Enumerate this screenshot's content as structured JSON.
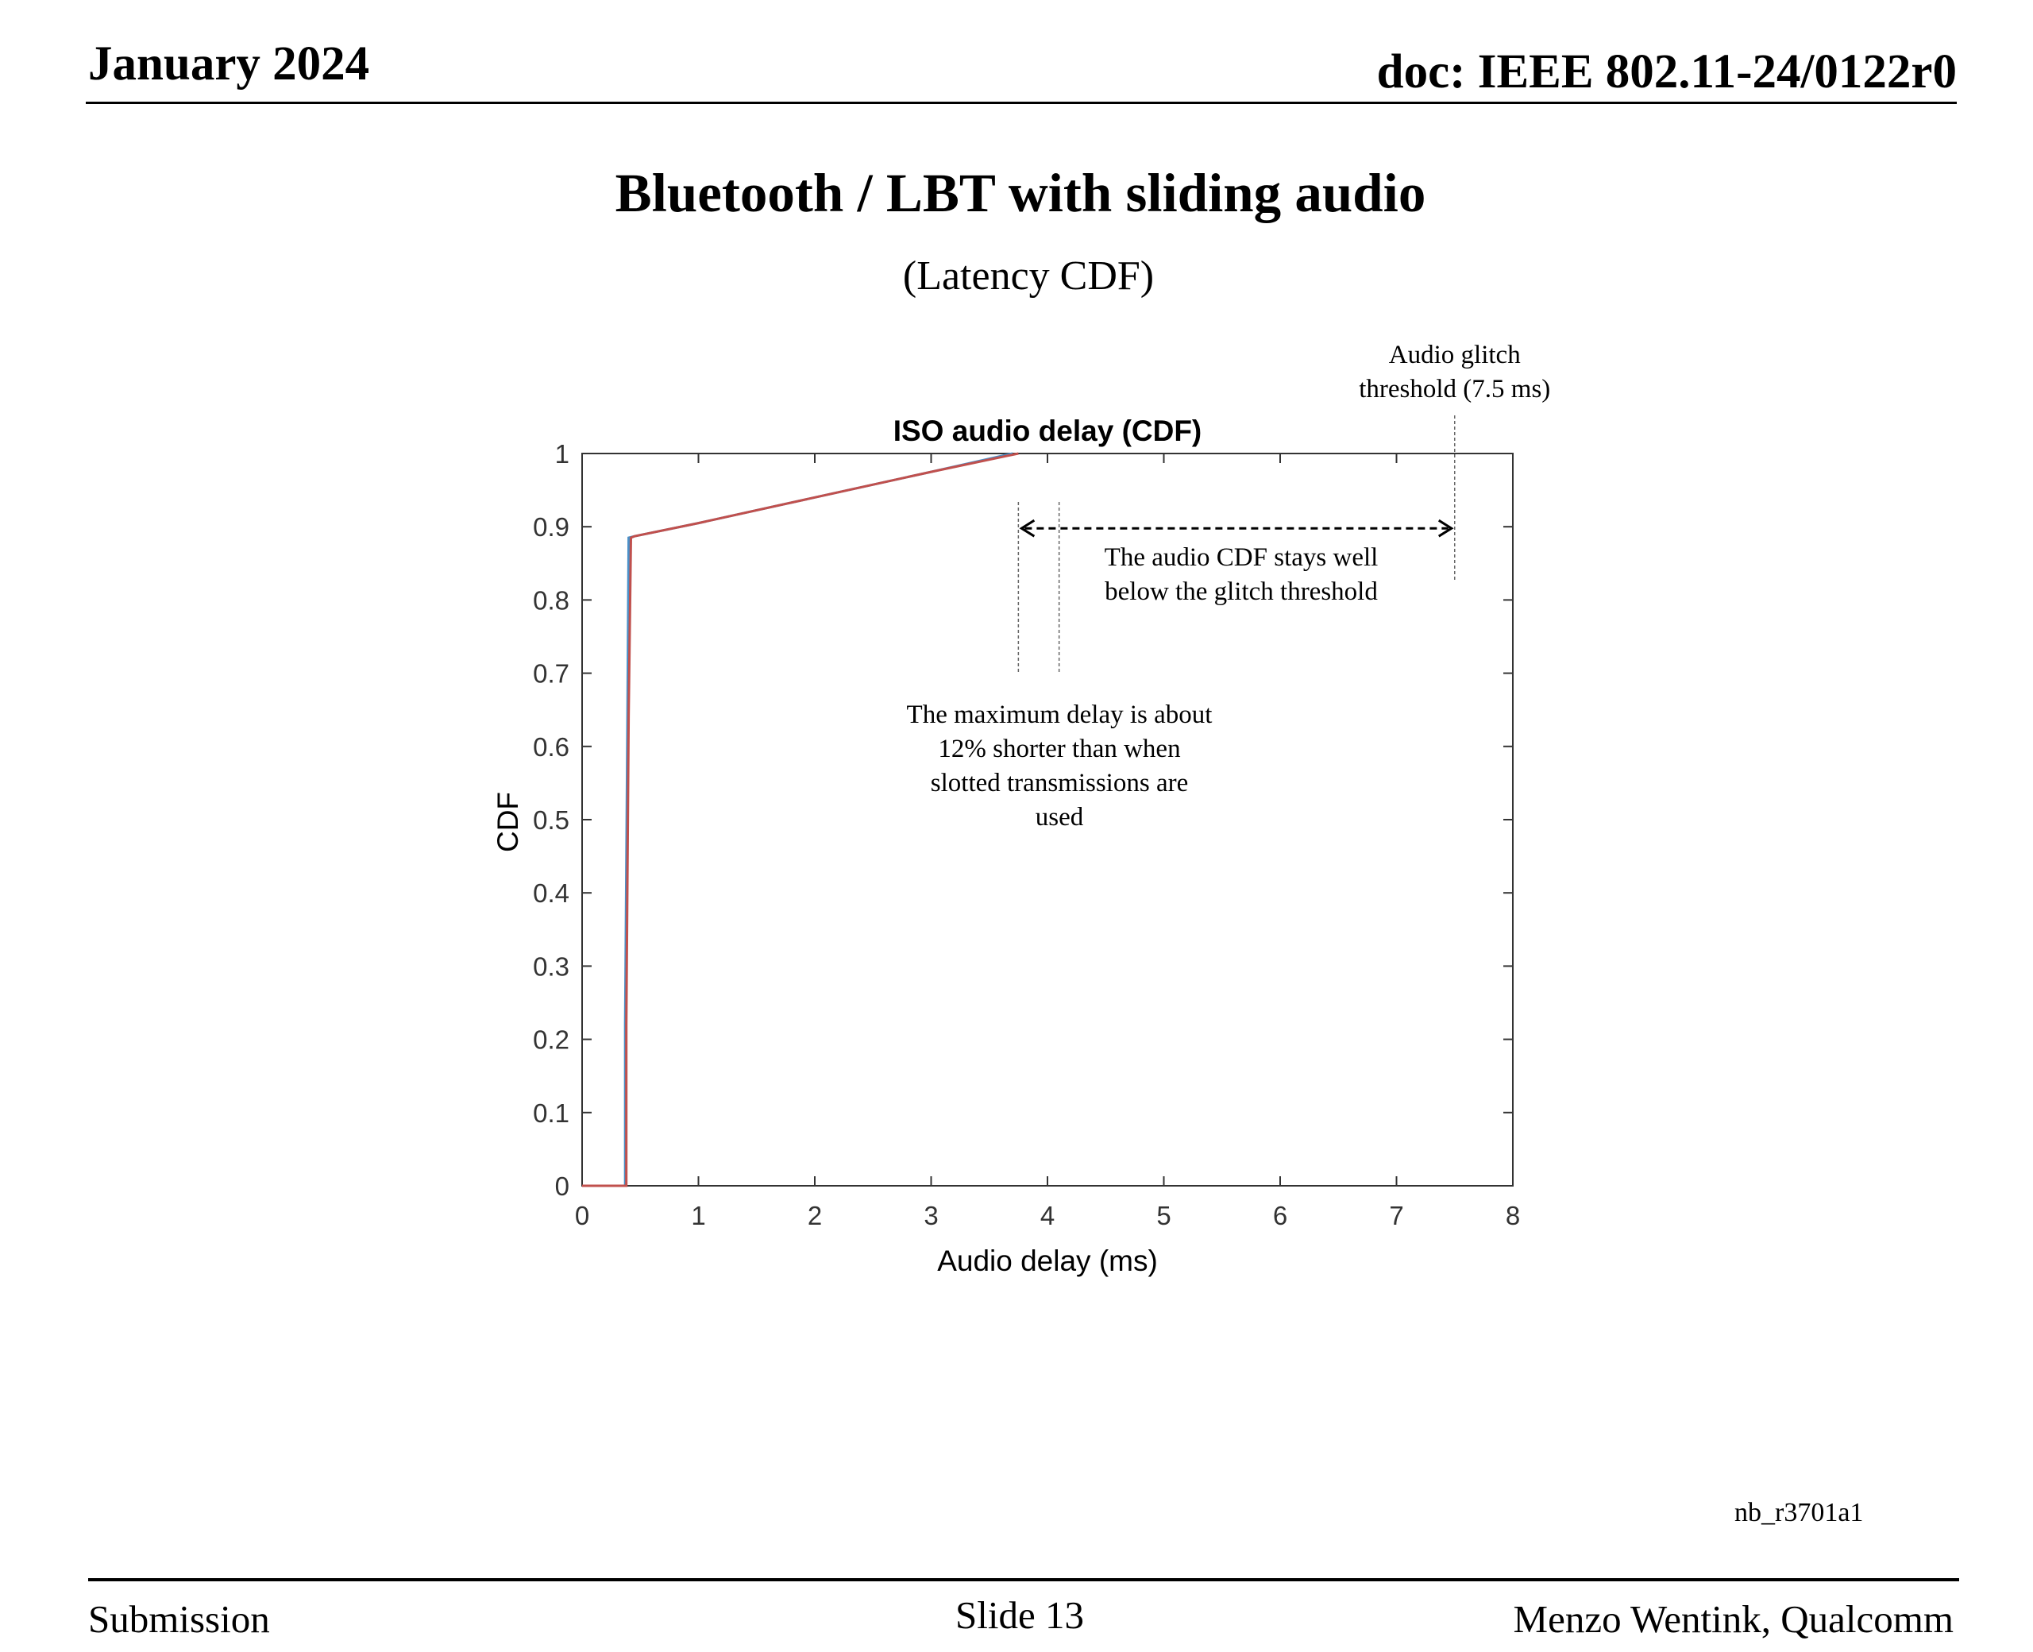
{
  "header": {
    "date": "January 2024",
    "doc": "doc: IEEE 802.11-24/0122r0"
  },
  "slide": {
    "title": "Bluetooth / LBT with sliding audio",
    "subtitle": "(Latency CDF)"
  },
  "footer": {
    "left": "Submission",
    "center": "Slide 13",
    "right": "Menzo Wentink, Qualcomm",
    "code": "nb_r3701a1"
  },
  "chart_data": {
    "type": "line",
    "title": "ISO audio delay (CDF)",
    "xlabel": "Audio delay (ms)",
    "ylabel": "CDF",
    "xlim": [
      0,
      8
    ],
    "ylim": [
      0,
      1
    ],
    "xticks": [
      0,
      1,
      2,
      3,
      4,
      5,
      6,
      7,
      8
    ],
    "yticks": [
      0,
      0.1,
      0.2,
      0.3,
      0.4,
      0.5,
      0.6,
      0.7,
      0.8,
      0.9,
      1
    ],
    "grid": false,
    "series": [
      {
        "color": "#4a90c8",
        "x": [
          0,
          0.37,
          0.37,
          0.39,
          0.4,
          0.45,
          1.0,
          2.0,
          3.0,
          3.7
        ],
        "y": [
          0,
          0,
          0.22,
          0.64,
          0.885,
          0.887,
          0.905,
          0.94,
          0.975,
          1.0
        ]
      },
      {
        "color": "#c0504d",
        "x": [
          0,
          0.38,
          0.38,
          0.4,
          0.42,
          0.45,
          1.0,
          2.0,
          3.0,
          3.75
        ],
        "y": [
          0,
          0,
          0.22,
          0.64,
          0.885,
          0.887,
          0.905,
          0.94,
          0.975,
          1.0
        ]
      }
    ],
    "annotations": {
      "threshold_label": [
        "Audio glitch",
        "threshold (7.5 ms)"
      ],
      "threshold_x": 7.5,
      "gap_text": [
        "The audio CDF stays well",
        "below the glitch threshold"
      ],
      "gap_from_x": 3.75,
      "gap_to_x": 7.5,
      "gap_y": 0.9,
      "max_delay_text": [
        "The maximum delay is about",
        "12% shorter than when",
        "slotted transmissions are",
        "used"
      ],
      "max_delay_lines_x": [
        3.75,
        4.1
      ]
    }
  }
}
